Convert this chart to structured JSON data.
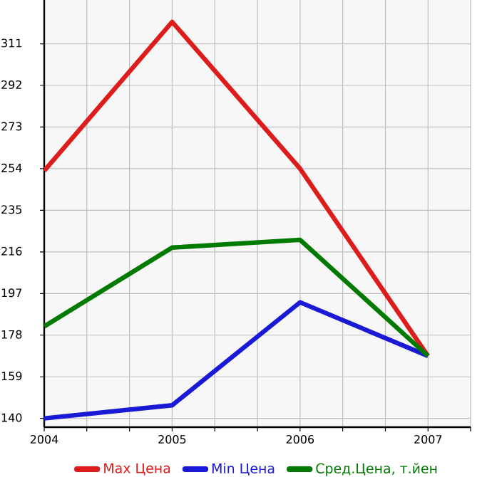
{
  "chart_data": {
    "type": "line",
    "x": [
      2004,
      2005,
      2006,
      2007
    ],
    "series": [
      {
        "name": "Max Цена",
        "color": "#dd1c1c",
        "values": [
          253,
          321,
          254,
          168.5
        ]
      },
      {
        "name": "Min Цена",
        "color": "#1a1ad6",
        "values": [
          140,
          146,
          193,
          168.5
        ]
      },
      {
        "name": "Сред.Цена, т.йен",
        "color": "#007a00",
        "values": [
          182,
          218,
          221.5,
          168.5
        ]
      }
    ],
    "xlim": [
      2004,
      2007.333
    ],
    "xticks": [
      2004,
      {
        "value": 2004.333,
        "label": null
      },
      {
        "value": 2004.667,
        "label": null
      },
      2005,
      {
        "value": 2005.333,
        "label": null
      },
      {
        "value": 2005.667,
        "label": null
      },
      2006,
      {
        "value": 2006.333,
        "label": null
      },
      {
        "value": 2006.667,
        "label": null
      },
      2007,
      {
        "value": 2007.333,
        "label": null
      }
    ],
    "ylim": [
      136,
      331
    ],
    "yticks": [
      140,
      159,
      178,
      197,
      216,
      235,
      254,
      273,
      292,
      311
    ],
    "grid": true,
    "legend": "bottom",
    "marker": "none",
    "line_style": "solid"
  }
}
